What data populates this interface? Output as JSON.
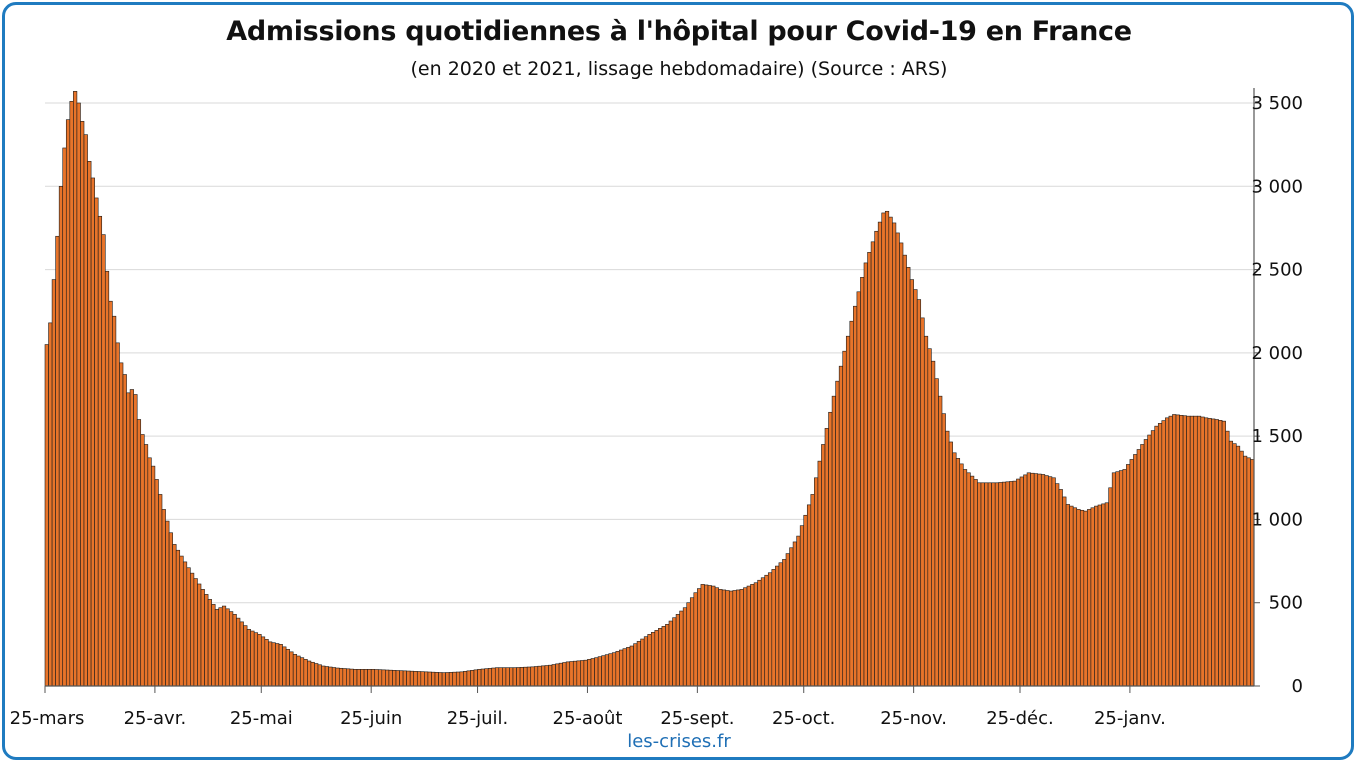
{
  "title": "Admissions quotidiennes à l'hôpital pour Covid-19 en France",
  "subtitle": "(en 2020 et 2021, lissage hebdomadaire) (Source : ARS)",
  "footer_link": "les-crises.fr",
  "colors": {
    "bar": "#e8742a",
    "bar_outline": "#1a1a1a",
    "frame": "#1f7bc0",
    "grid": "#d9d9d9",
    "link": "#1f6fb5"
  },
  "chart_data": {
    "type": "bar",
    "title": "Admissions quotidiennes à l'hôpital pour Covid-19 en France",
    "subtitle": "(en 2020 et 2021, lissage hebdomadaire) (Source : ARS)",
    "xlabel": "",
    "ylabel": "",
    "ylim": [
      0,
      3500
    ],
    "y_ticks": [
      "0",
      "500",
      "1 000",
      "1 500",
      "2 000",
      "2 500",
      "3 000",
      "3 500"
    ],
    "y_tick_values": [
      0,
      500,
      1000,
      1500,
      2000,
      2500,
      3000,
      3500
    ],
    "y_axis_side": "right",
    "grid": true,
    "x_tick_labels": [
      "25-mars",
      "25-avr.",
      "25-mai",
      "25-juin",
      "25-juil.",
      "25-août",
      "25-sept.",
      "25-oct.",
      "25-nov.",
      "25-déc.",
      "25-janv."
    ],
    "x_tick_day_index": [
      0,
      31,
      61,
      92,
      122,
      153,
      184,
      214,
      245,
      275,
      306
    ],
    "x_start_date": "2020-03-25",
    "anchor_series": {
      "description": "daily values (every day from 25-mars 2020 to ~10-févr. 2021), key points read from the chart",
      "points": [
        [
          0,
          2050
        ],
        [
          1,
          2180
        ],
        [
          2,
          2440
        ],
        [
          3,
          2700
        ],
        [
          4,
          3000
        ],
        [
          5,
          3230
        ],
        [
          6,
          3400
        ],
        [
          7,
          3510
        ],
        [
          8,
          3570
        ],
        [
          9,
          3500
        ],
        [
          10,
          3390
        ],
        [
          11,
          3310
        ],
        [
          12,
          3150
        ],
        [
          13,
          3050
        ],
        [
          14,
          2930
        ],
        [
          15,
          2820
        ],
        [
          16,
          2710
        ],
        [
          17,
          2490
        ],
        [
          18,
          2310
        ],
        [
          19,
          2220
        ],
        [
          20,
          2060
        ],
        [
          21,
          1940
        ],
        [
          22,
          1870
        ],
        [
          23,
          1760
        ],
        [
          24,
          1780
        ],
        [
          25,
          1750
        ],
        [
          26,
          1600
        ],
        [
          27,
          1510
        ],
        [
          28,
          1450
        ],
        [
          29,
          1370
        ],
        [
          30,
          1320
        ],
        [
          31,
          1240
        ],
        [
          33,
          1060
        ],
        [
          36,
          850
        ],
        [
          40,
          710
        ],
        [
          44,
          580
        ],
        [
          48,
          460
        ],
        [
          50,
          480
        ],
        [
          53,
          430
        ],
        [
          57,
          340
        ],
        [
          60,
          310
        ],
        [
          63,
          265
        ],
        [
          66,
          250
        ],
        [
          70,
          190
        ],
        [
          74,
          150
        ],
        [
          78,
          120
        ],
        [
          82,
          108
        ],
        [
          87,
          100
        ],
        [
          92,
          100
        ],
        [
          97,
          95
        ],
        [
          102,
          90
        ],
        [
          107,
          85
        ],
        [
          112,
          80
        ],
        [
          117,
          85
        ],
        [
          122,
          100
        ],
        [
          127,
          110
        ],
        [
          132,
          110
        ],
        [
          137,
          115
        ],
        [
          142,
          125
        ],
        [
          147,
          145
        ],
        [
          152,
          155
        ],
        [
          155,
          170
        ],
        [
          160,
          200
        ],
        [
          165,
          240
        ],
        [
          170,
          310
        ],
        [
          175,
          370
        ],
        [
          180,
          470
        ],
        [
          183,
          560
        ],
        [
          185,
          610
        ],
        [
          188,
          600
        ],
        [
          190,
          580
        ],
        [
          193,
          570
        ],
        [
          196,
          580
        ],
        [
          200,
          620
        ],
        [
          204,
          680
        ],
        [
          208,
          760
        ],
        [
          212,
          900
        ],
        [
          216,
          1150
        ],
        [
          219,
          1450
        ],
        [
          222,
          1740
        ],
        [
          225,
          2010
        ],
        [
          228,
          2280
        ],
        [
          231,
          2540
        ],
        [
          234,
          2730
        ],
        [
          236,
          2840
        ],
        [
          237,
          2850
        ],
        [
          239,
          2780
        ],
        [
          241,
          2660
        ],
        [
          244,
          2440
        ],
        [
          246,
          2320
        ],
        [
          248,
          2100
        ],
        [
          250,
          1950
        ],
        [
          252,
          1740
        ],
        [
          254,
          1530
        ],
        [
          256,
          1400
        ],
        [
          259,
          1300
        ],
        [
          263,
          1220
        ],
        [
          268,
          1220
        ],
        [
          273,
          1230
        ],
        [
          277,
          1280
        ],
        [
          281,
          1270
        ],
        [
          284,
          1250
        ],
        [
          286,
          1180
        ],
        [
          288,
          1090
        ],
        [
          291,
          1060
        ],
        [
          293,
          1050
        ],
        [
          296,
          1080
        ],
        [
          299,
          1100
        ],
        [
          301,
          1280
        ],
        [
          304,
          1300
        ],
        [
          307,
          1390
        ],
        [
          310,
          1480
        ],
        [
          313,
          1560
        ],
        [
          316,
          1610
        ],
        [
          318,
          1630
        ],
        [
          322,
          1620
        ],
        [
          325,
          1620
        ],
        [
          327,
          1610
        ],
        [
          330,
          1600
        ],
        [
          332,
          1590
        ],
        [
          334,
          1470
        ],
        [
          336,
          1440
        ],
        [
          338,
          1380
        ],
        [
          340,
          1360
        ]
      ]
    }
  }
}
